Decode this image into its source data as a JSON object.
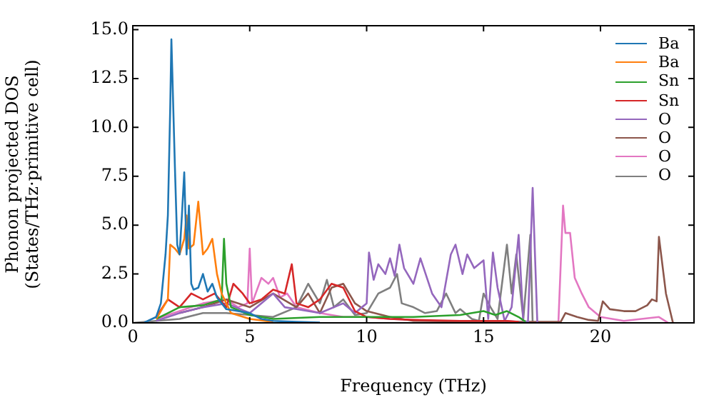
{
  "chart_data": {
    "type": "line",
    "xlabel": "Frequency (THz)",
    "ylabel": "Phonon projected DOS\n(States/THz·primitive cell)",
    "xlim": [
      0,
      24
    ],
    "xticks": [
      0,
      5,
      10,
      15,
      20
    ],
    "ylim": [
      0,
      15.2
    ],
    "yticks": [
      {
        "value": 0,
        "label": "0.0"
      },
      {
        "value": 2.5,
        "label": "2.5"
      },
      {
        "value": 5,
        "label": "5.0"
      },
      {
        "value": 7.5,
        "label": "7.5"
      },
      {
        "value": 10,
        "label": "10.0"
      },
      {
        "value": 12.5,
        "label": "12.5"
      },
      {
        "value": 15,
        "label": "15.0"
      }
    ],
    "grid": false,
    "legend": "top right",
    "marker": "none",
    "line_style": "solid",
    "series": [
      {
        "name": "Ba",
        "color": "#1f77b4",
        "x": [
          0.5,
          1,
          1.2,
          1.4,
          1.5,
          1.6,
          1.65,
          1.8,
          1.9,
          2.0,
          2.1,
          2.2,
          2.3,
          2.4,
          2.5,
          2.6,
          2.8,
          3.0,
          3.2,
          3.4,
          3.6,
          3.8,
          4.0,
          4.5,
          5,
          5.5,
          6,
          7,
          8
        ],
        "values": [
          0.02,
          0.3,
          1,
          3.5,
          5.5,
          11,
          14.5,
          8,
          4,
          3.5,
          5.5,
          7.7,
          3.5,
          6.0,
          2.0,
          1.7,
          1.8,
          2.5,
          1.6,
          2.0,
          1.3,
          1.0,
          0.7,
          0.6,
          0.5,
          0.2,
          0.1,
          0.05,
          0.02
        ]
      },
      {
        "name": "Ba",
        "color": "#ff7f0e",
        "x": [
          1,
          1.5,
          1.6,
          1.8,
          2.0,
          2.2,
          2.3,
          2.4,
          2.6,
          2.8,
          3.0,
          3.2,
          3.4,
          3.6,
          3.8,
          4.0,
          4.2,
          5,
          6
        ],
        "values": [
          0.2,
          1.2,
          4.0,
          3.8,
          3.5,
          4.3,
          5.5,
          3.8,
          4.0,
          6.2,
          3.5,
          3.8,
          4.3,
          2.5,
          1.5,
          1.0,
          0.5,
          0.2,
          0.05
        ]
      },
      {
        "name": "Sn",
        "color": "#2ca02c",
        "x": [
          1,
          1.5,
          2,
          3,
          3.8,
          3.9,
          4.0,
          4.2,
          5,
          6,
          8,
          10,
          12,
          14,
          15,
          15.5,
          16,
          16.5,
          16.8
        ],
        "values": [
          0.2,
          0.5,
          0.8,
          0.9,
          1.2,
          4.3,
          2.0,
          0.8,
          0.4,
          0.2,
          0.3,
          0.3,
          0.3,
          0.4,
          0.6,
          0.4,
          0.6,
          0.3,
          0.05
        ]
      },
      {
        "name": "Sn",
        "color": "#d62728",
        "x": [
          1,
          1.5,
          2,
          2.5,
          3,
          3.5,
          4,
          4.3,
          4.7,
          5,
          5.5,
          6,
          6.5,
          6.8,
          7,
          7.5,
          8,
          8.5,
          9,
          9.5,
          10,
          11,
          12,
          14,
          16,
          16.5
        ],
        "values": [
          0.3,
          1.2,
          0.8,
          1.5,
          1.2,
          1.5,
          0.8,
          2.0,
          1.5,
          1.0,
          1.2,
          1.7,
          1.5,
          3.0,
          1.0,
          0.8,
          1.2,
          2.0,
          1.8,
          0.6,
          0.3,
          0.2,
          0.15,
          0.1,
          0.1,
          0.05
        ]
      },
      {
        "name": "O",
        "color": "#9467bd",
        "x": [
          1,
          2,
          3,
          4,
          5,
          6,
          6.5,
          7,
          8,
          9,
          9.5,
          10,
          10.1,
          10.3,
          10.5,
          10.8,
          11,
          11.2,
          11.4,
          11.6,
          12,
          12.3,
          12.8,
          13.2,
          13.6,
          13.8,
          14.1,
          14.3,
          14.6,
          15,
          15.2,
          15.4,
          15.6,
          15.9,
          16.2,
          16.5,
          16.7,
          16.9,
          17.1,
          17.3
        ],
        "values": [
          0.1,
          0.5,
          0.8,
          1.0,
          0.5,
          1.5,
          0.8,
          0.7,
          0.5,
          1.0,
          0.5,
          1.0,
          3.6,
          2.2,
          3.0,
          2.5,
          3.3,
          2.4,
          4.0,
          2.8,
          2.0,
          3.3,
          1.5,
          0.8,
          3.5,
          4.0,
          2.5,
          3.5,
          2.8,
          3.2,
          0.2,
          3.6,
          1.8,
          0.1,
          0.8,
          4.5,
          0.1,
          0.05,
          6.9,
          0
        ]
      },
      {
        "name": "O",
        "color": "#8c564b",
        "x": [
          2,
          3,
          4,
          5,
          6,
          7,
          7.5,
          8,
          8.5,
          9,
          9.5,
          10,
          11,
          12,
          16,
          18.3,
          18.5,
          19,
          19.5,
          19.9,
          20.1,
          20.4,
          21,
          21.5,
          22,
          22.2,
          22.4,
          22.5,
          22.8,
          23.1
        ],
        "values": [
          0.5,
          0.8,
          1.2,
          0.8,
          1.5,
          0.8,
          1.5,
          0.5,
          1.8,
          2.0,
          1.0,
          0.6,
          0.3,
          0.1,
          0.05,
          0.05,
          0.5,
          0.3,
          0.15,
          0.1,
          1.1,
          0.7,
          0.6,
          0.6,
          0.9,
          1.2,
          1.1,
          4.4,
          1.5,
          0
        ]
      },
      {
        "name": "O",
        "color": "#e377c2",
        "x": [
          1,
          2,
          3,
          4,
          4.5,
          4.9,
          5.0,
          5.1,
          5.5,
          5.8,
          6.0,
          6.3,
          6.6,
          7,
          8,
          9,
          10,
          11,
          13,
          16,
          17,
          18.2,
          18.4,
          18.5,
          18.7,
          18.9,
          19.2,
          19.5,
          20,
          21,
          22.5,
          22.9
        ],
        "values": [
          0.2,
          0.6,
          1.0,
          1.2,
          0.8,
          1.0,
          3.8,
          1.0,
          2.3,
          2.0,
          2.3,
          1.3,
          1.5,
          0.8,
          0.5,
          0.3,
          0.3,
          0.2,
          0.1,
          0.1,
          0,
          0,
          6.0,
          4.6,
          4.6,
          2.3,
          1.5,
          0.8,
          0.3,
          0.1,
          0.3,
          0
        ]
      },
      {
        "name": "O",
        "color": "#7f7f7f",
        "x": [
          0,
          2,
          3,
          4,
          5,
          6,
          7,
          7.5,
          8,
          8.3,
          8.6,
          9,
          9.5,
          10,
          10.5,
          11,
          11.3,
          11.5,
          12,
          12.5,
          13,
          13.4,
          13.8,
          14,
          14.5,
          14.8,
          15,
          15.3,
          15.6,
          16,
          16.2,
          16.4,
          16.7,
          17,
          17.1
        ],
        "values": [
          0,
          0.2,
          0.5,
          0.5,
          0.4,
          0.3,
          0.8,
          2.0,
          1.0,
          2.2,
          0.8,
          1.2,
          0.4,
          0.5,
          1.5,
          1.8,
          2.5,
          1.0,
          0.8,
          0.5,
          0.6,
          1.5,
          0.5,
          0.7,
          0.2,
          0.1,
          1.5,
          0.8,
          0.2,
          4.0,
          1.5,
          3.5,
          0.2,
          4.5,
          0
        ]
      }
    ]
  }
}
